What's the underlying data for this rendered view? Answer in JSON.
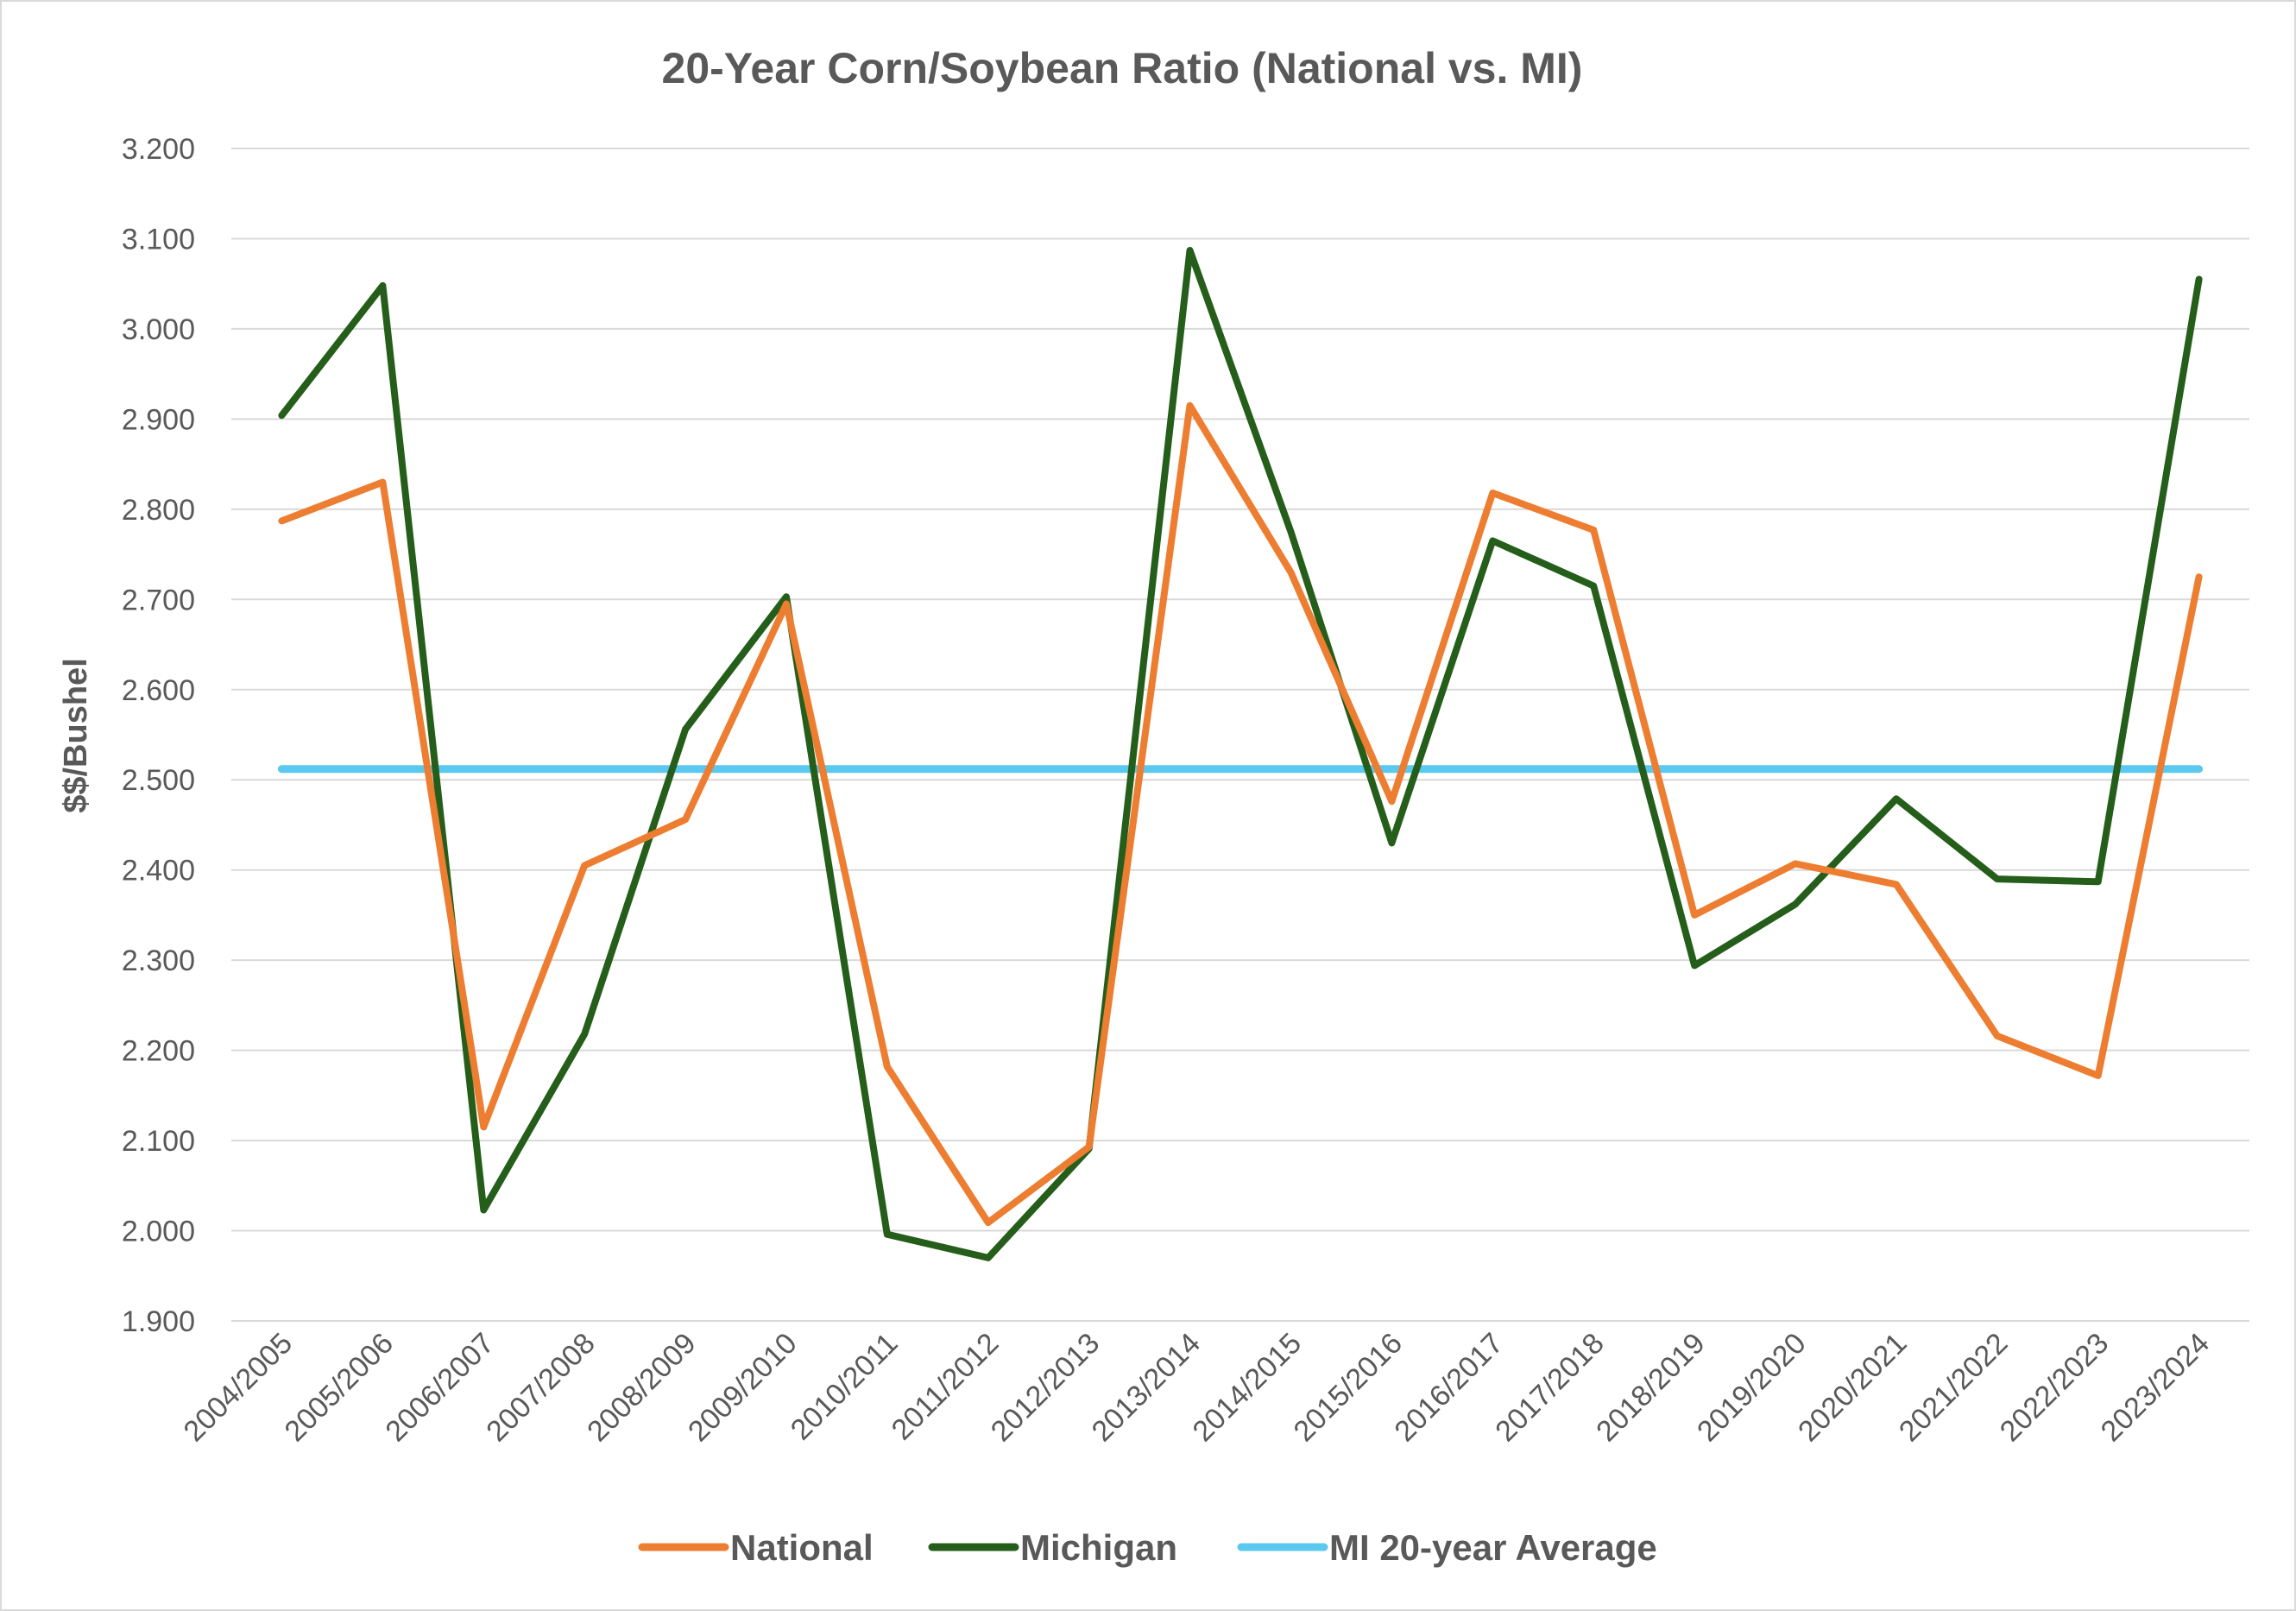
{
  "chart_data": {
    "type": "line",
    "title": "20-Year Corn/Soybean Ratio (National vs. MI)",
    "xlabel": "",
    "ylabel": "$$/Bushel",
    "ylim": [
      1.9,
      3.2
    ],
    "ytick_step": 0.1,
    "ytick_labels": [
      "1.900",
      "2.000",
      "2.100",
      "2.200",
      "2.300",
      "2.400",
      "2.500",
      "2.600",
      "2.700",
      "2.800",
      "2.900",
      "3.000",
      "3.100",
      "3.200"
    ],
    "grid": true,
    "legend_position": "bottom",
    "categories": [
      "2004/2005",
      "2005/2006",
      "2006/2007",
      "2007/2008",
      "2008/2009",
      "2009/2010",
      "2010/2011",
      "2011/2012",
      "2012/2013",
      "2013/2014",
      "2014/2015",
      "2015/2016",
      "2016/2017",
      "2017/2018",
      "2018/2019",
      "2019/2020",
      "2020/2021",
      "2021/2022",
      "2022/2023",
      "2023/2024"
    ],
    "series": [
      {
        "name": "National",
        "color": "#ED7D31",
        "values": [
          2.787,
          2.83,
          2.115,
          2.405,
          2.456,
          2.695,
          2.182,
          2.009,
          2.093,
          2.915,
          2.73,
          2.476,
          2.818,
          2.777,
          2.35,
          2.407,
          2.384,
          2.216,
          2.172,
          2.725
        ]
      },
      {
        "name": "Michigan",
        "color": "#255E1A",
        "values": [
          2.904,
          3.048,
          2.023,
          2.218,
          2.556,
          2.703,
          1.996,
          1.97,
          2.091,
          3.087,
          2.775,
          2.43,
          2.765,
          2.715,
          2.294,
          2.362,
          2.479,
          2.39,
          2.387,
          3.055
        ]
      },
      {
        "name": "MI 20-year Average",
        "color": "#5BC8F0",
        "values": [
          2.512,
          2.512,
          2.512,
          2.512,
          2.512,
          2.512,
          2.512,
          2.512,
          2.512,
          2.512,
          2.512,
          2.512,
          2.512,
          2.512,
          2.512,
          2.512,
          2.512,
          2.512,
          2.512,
          2.512
        ]
      }
    ]
  }
}
